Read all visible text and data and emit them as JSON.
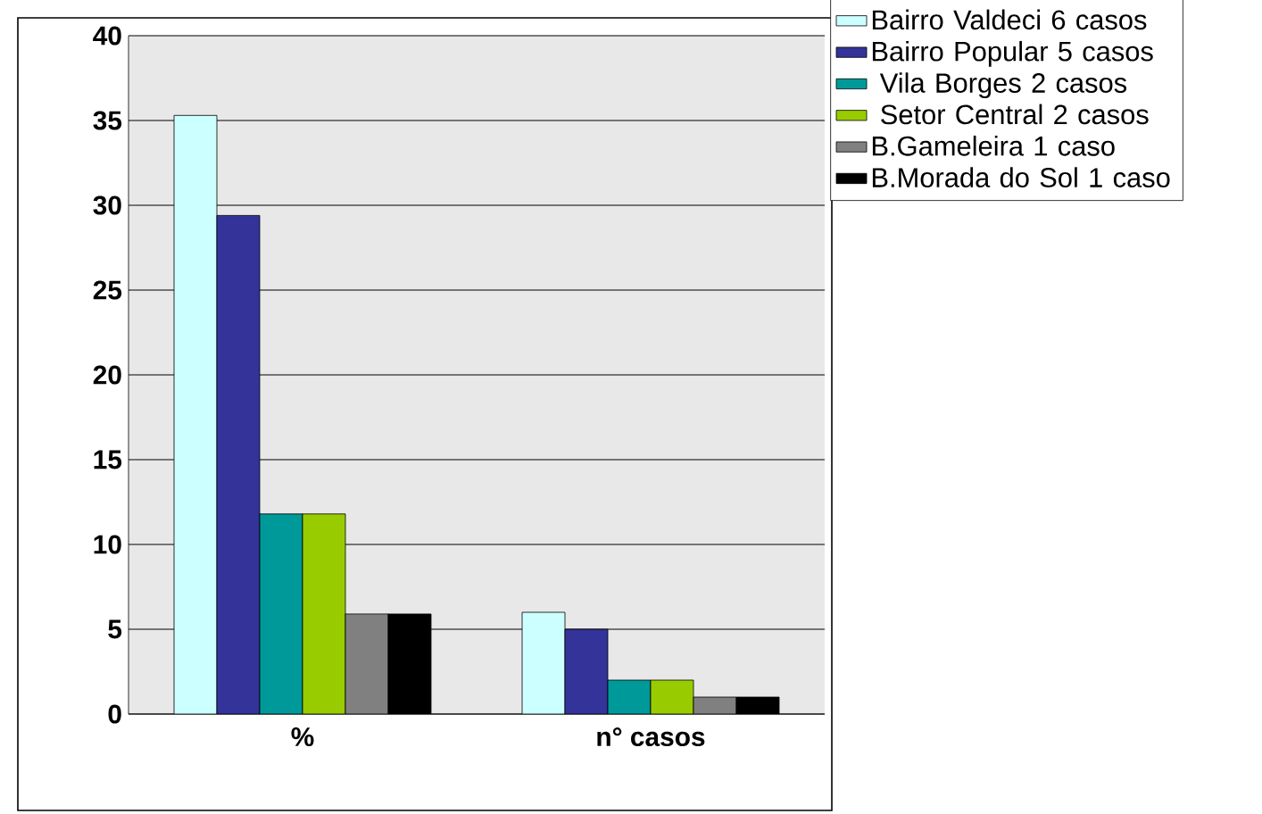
{
  "chart_data": {
    "type": "bar",
    "categories": [
      "%",
      "n° casos"
    ],
    "series": [
      {
        "name": "Bairro Valdeci 6 casos",
        "color": "#ccffff",
        "values": [
          35.3,
          6
        ]
      },
      {
        "name": "Bairro Popular 5 casos",
        "color": "#333399",
        "values": [
          29.4,
          5
        ]
      },
      {
        "name": " Vila Borges 2 casos",
        "color": "#009999",
        "values": [
          11.8,
          2
        ]
      },
      {
        "name": " Setor Central 2 casos",
        "color": "#99cc00",
        "values": [
          11.8,
          2
        ]
      },
      {
        "name": "B.Gameleira 1 caso",
        "color": "#808080",
        "values": [
          5.9,
          1
        ]
      },
      {
        "name": "B.Morada do Sol 1 caso",
        "color": "#000000",
        "values": [
          5.9,
          1
        ]
      }
    ],
    "ylim": [
      0,
      40
    ],
    "yticks": [
      0,
      5,
      10,
      15,
      20,
      25,
      30,
      35,
      40
    ],
    "grid": "y",
    "legend": "right"
  }
}
